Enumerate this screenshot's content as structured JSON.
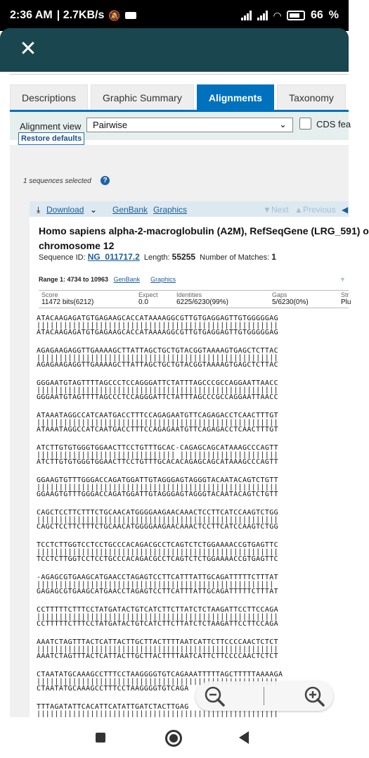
{
  "status_bar": {
    "time": "2:36 AM",
    "speed": "| 2.7KB/s",
    "battery": "66"
  },
  "tabs": [
    {
      "label": "Descriptions"
    },
    {
      "label": "Graphic Summary"
    },
    {
      "label": "Alignments",
      "active": true
    },
    {
      "label": "Taxonomy"
    }
  ],
  "view": {
    "label": "Alignment view",
    "selected": "Pairwise",
    "cds_label": "CDS fea",
    "restore": "Restore defaults"
  },
  "selected_info": "1 sequences selected",
  "toolbar": {
    "download": "Download",
    "genbank": "GenBank",
    "graphics": "Graphics",
    "next": "Next",
    "previous": "Previous"
  },
  "sequence": {
    "title_line1": "Homo sapiens alpha-2-macroglobulin (A2M), RefSeqGene (LRG_591) o",
    "title_line2": "chromosome 12",
    "id_label": "Sequence ID:",
    "id": "NG_011717.2",
    "length_label": "Length:",
    "length": "55255",
    "matches_label": "Number of Matches:",
    "matches": "1"
  },
  "range": {
    "label": "Range 1: 4734 to 10963",
    "genbank": "GenBank",
    "graphics": "Graphics"
  },
  "stats": {
    "score_h": "Score",
    "score_v": "11472 bits(6212)",
    "expect_h": "Expect",
    "expect_v": "0.0",
    "ident_h": "Identities",
    "ident_v": "6225/6230(99%)",
    "gaps_h": "Gaps",
    "gaps_v": "5/6230(0%)",
    "strand_h": "Str",
    "strand_v": "Plu"
  },
  "alignment": [
    {
      "q": "ATACAAGAGATGTGAGAAGCACCATAAAAGGCGTTGTGAGGAGTTGTGGGGGAG",
      "m": "||||||||||||||||||||||||||||||||||||||||||||||||||||||",
      "s": "ATACAAGAGATGTGAGAAGCACCATAAAAGGCGTTGTGAGGAGTTGTGGGGGAG"
    },
    {
      "q": "AGAGAAGAGGTTGAAAAGCTTATTAGCTGCTGTACGGTAAAAGTGAGCTCTTAC",
      "m": "||||||||||||||||||||||||||||||||||||||||||||||||||||||",
      "s": "AGAGAAGAGGTTGAAAAGCTTATTAGCTGCTGTACGGTAAAAGTGAGCTCTTAC"
    },
    {
      "q": "GGGAATGTAGTTTTAGCCCTCCAGGGATTCTATTTAGCCCGCCAGGAATTAACC",
      "m": "||||||||||||||||||||||||||||||||||||||||||||||||||||||",
      "s": "GGGAATGTAGTTTTAGCCCTCCAGGGATTCTATTTAGCCCGCCAGGAATTAACC"
    },
    {
      "q": "ATAAATAGGCCATCAATGACCTTTCCAGAGAATGTTCAGAGACCTCAACTTTGT",
      "m": "||||||||||||||||||||||||||||||||||||||||||||||||||||||",
      "s": "ATAAATAGGCCATCAATGACCTTTCCAGAGAATGTTCAGAGACCTCAACTTTGT"
    },
    {
      "q": "ATCTTGTGTGGGTGGAACTTCCTGTTTGCAC-CAGAGCAGCATAAAGCCCAGTT",
      "m": "||||||||||||||||||||||||||||||| ||||||||||||||||||||||",
      "s": "ATCTTGTGTGGGTGGAACTTCCTGTTTGCACACAGAGCAGCATAAAGCCCAGTT"
    },
    {
      "q": "GGAAGTGTTTGGGACCAGATGGATTGTAGGGAGTAGGGTACAATACAGTCTGTT",
      "m": "||||||||||||||||||||||||||||||||||||||||||||||||||||||",
      "s": "GGAAGTGTTTGGGACCAGATGGATTGTAGGGAGTAGGGTACAATACAGTCTGTT"
    },
    {
      "q": "CAGCTCCTTCTTTCTGCAACATGGGGAAGAACAAACTCCTTCATCCAAGTCTGG",
      "m": "||||||||||||||||||||||||||||||||||||||||||||||||||||||",
      "s": "CAGCTCCTTCTTTCTGCAACATGGGGAAGAACAAACTCCTTCATCCAAGTCTGG"
    },
    {
      "q": "TCCTCTTGGTCCTCCTGCCCACAGACGCCTCAGTCTCTGGAAAACCGTGAGTTC",
      "m": "||||||||||||||||||||||||||||||||||||||||||||||||||||||",
      "s": "TCCTCTTGGTCCTCCTGCCCACAGACGCCTCAGTCTCTGGAAAACCGTGAGTTC"
    },
    {
      "q": "-AGAGCGTGAAGCATGAACCTAGAGTCCTTCATTTATTGCAGATTTTTCTTTAT",
      "m": " |||||||||||||||||||||||||||||||||||||||||||||||||||||",
      "s": "GAGAGCGTGAAGCATGAACCTAGAGTCCTTCATTTATTGCAGATTTTTCTTTAT"
    },
    {
      "q": "CCTTTTTCTTTCCTATGATACTGTCATCTTCTTATCTCTAAGATTCCTTCCAGA",
      "m": "||||||||||||||||||||||||||||||||||||||||||||||||||||||",
      "s": "CCTTTTTCTTTCCTATGATACTGTCATCTTCTTATCTCTAAGATTCCTTCCAGA"
    },
    {
      "q": "AAATCTAGTTTACTCATTACTTGCTTACTTTTAATCATTCTTCCCCAACTCTCT",
      "m": "||||||||||||||||||||||||||||||||||||||||||||||||||||||",
      "s": "AAATCTAGTTTACTCATTACTTGCTTACTTTTAATCATTCTTCCCCAACTCTCT"
    },
    {
      "q": "CTAATATGCAAAGCCTTTCCTAAGGGGTGTCAGAAATTTTTAGCTTTTTAAAAGA",
      "m": "||||||||||||||||||||||||||||||||||||||||||||||||||||||",
      "s": "CTAATATGCAAAGCCTTTCCTAAGGGGTGTCAGA"
    },
    {
      "q": "TTTAGATATTCACATTCATATTGATCTACTTGAG",
      "m": "||||||||||||||||||||||||||||||||||||||||||||||||||||||",
      "s": ""
    }
  ]
}
